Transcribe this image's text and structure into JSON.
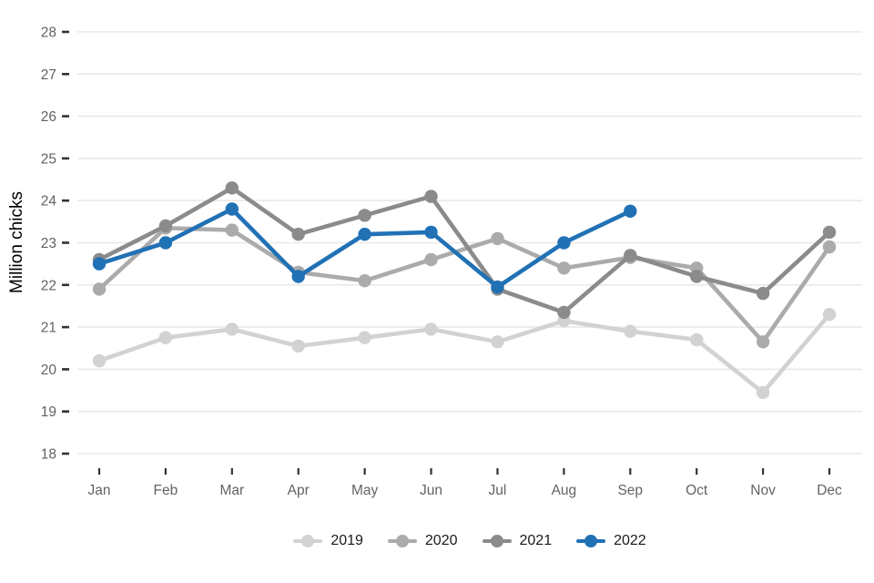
{
  "chart_data": {
    "type": "line",
    "title": "",
    "xlabel": "",
    "ylabel": "Million chicks",
    "x_categories": [
      "Jan",
      "Feb",
      "Mar",
      "Apr",
      "May",
      "Jun",
      "Jul",
      "Aug",
      "Sep",
      "Oct",
      "Nov",
      "Dec"
    ],
    "y_ticks": [
      18,
      19,
      20,
      21,
      22,
      23,
      24,
      25,
      26,
      27,
      28
    ],
    "ylim": [
      17.8,
      28.3
    ],
    "grid": "horizontal-only",
    "legend_position": "bottom-center",
    "series": [
      {
        "name": "2019",
        "color": "#d2d2d2",
        "values": [
          20.2,
          20.75,
          20.95,
          20.55,
          20.75,
          20.95,
          20.65,
          21.15,
          20.9,
          20.7,
          19.45,
          21.3
        ]
      },
      {
        "name": "2020",
        "color": "#ababab",
        "values": [
          21.9,
          23.35,
          23.3,
          22.3,
          22.1,
          22.6,
          23.1,
          22.4,
          22.65,
          22.4,
          20.65,
          22.9
        ]
      },
      {
        "name": "2021",
        "color": "#8b8b8b",
        "values": [
          22.6,
          23.4,
          24.3,
          23.2,
          23.65,
          24.1,
          21.9,
          21.35,
          22.7,
          22.2,
          21.8,
          23.25
        ]
      },
      {
        "name": "2022",
        "color": "#2171b5",
        "values": [
          22.5,
          23.0,
          23.8,
          22.2,
          23.2,
          23.25,
          21.95,
          23.0,
          23.75,
          null,
          null,
          null
        ]
      }
    ],
    "style": {
      "gridline_color": "#e9e9e9",
      "tick_mark_color": "#333333",
      "axis_text_color": "#636363",
      "ylabel_color": "#000000",
      "legend_text_color": "#1a1a1a",
      "background_color": "#ffffff"
    }
  }
}
